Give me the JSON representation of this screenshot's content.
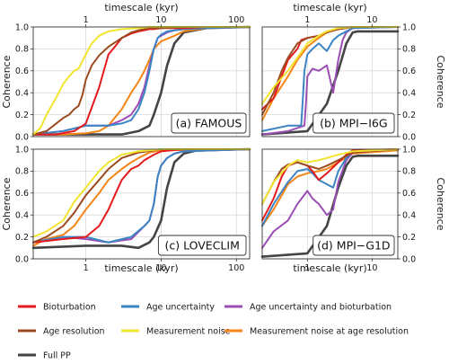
{
  "chart_data": [
    {
      "type": "line",
      "panel_label": "(a) FAMOUS",
      "xscale": "log",
      "xlim": [
        0.2,
        150
      ],
      "ylim": [
        0,
        1.0
      ],
      "x_ticks_top": [
        "1",
        "10",
        "100"
      ],
      "xlabel_top": "timescale (kyr)",
      "ylabel": "Coherence",
      "y_ticks": [
        "0.0",
        "0.2",
        "0.4",
        "0.6",
        "0.8",
        "1.0"
      ],
      "series": [
        {
          "name": "Bioturbation",
          "x": [
            0.2,
            0.4,
            0.7,
            1,
            1.5,
            2,
            2.5,
            3,
            4,
            5,
            6,
            7,
            8,
            10,
            15,
            20,
            40,
            150
          ],
          "y": [
            0.02,
            0.02,
            0.05,
            0.12,
            0.45,
            0.75,
            0.83,
            0.9,
            0.94,
            0.96,
            0.97,
            0.98,
            0.98,
            0.99,
            0.99,
            0.99,
            1.0,
            1.0
          ]
        },
        {
          "name": "Age uncertainty",
          "x": [
            0.2,
            0.5,
            1,
            2,
            3,
            4,
            5,
            6,
            7,
            8,
            9,
            10,
            12,
            15,
            20,
            40,
            150
          ],
          "y": [
            0.02,
            0.05,
            0.1,
            0.1,
            0.12,
            0.15,
            0.25,
            0.4,
            0.6,
            0.8,
            0.9,
            0.93,
            0.96,
            0.97,
            0.98,
            0.99,
            1.0
          ]
        },
        {
          "name": "Age uncertainty and bioturbation",
          "x": [
            0.2,
            0.5,
            1,
            2,
            3,
            4,
            5,
            6,
            7,
            8,
            9,
            10,
            12,
            15,
            20,
            40,
            150
          ],
          "y": [
            0.02,
            0.05,
            0.1,
            0.1,
            0.15,
            0.2,
            0.3,
            0.45,
            0.65,
            0.8,
            0.9,
            0.92,
            0.95,
            0.97,
            0.98,
            0.99,
            1.0
          ]
        },
        {
          "name": "Age resolution",
          "x": [
            0.2,
            0.3,
            0.5,
            0.6,
            0.7,
            0.8,
            0.9,
            1,
            1.2,
            1.5,
            2,
            3,
            4,
            5,
            7,
            10,
            20,
            150
          ],
          "y": [
            0.02,
            0.05,
            0.17,
            0.2,
            0.25,
            0.28,
            0.38,
            0.52,
            0.65,
            0.74,
            0.82,
            0.9,
            0.95,
            0.97,
            0.99,
            0.99,
            1.0,
            1.0
          ]
        },
        {
          "name": "Measurement noise",
          "x": [
            0.2,
            0.25,
            0.3,
            0.4,
            0.5,
            0.6,
            0.7,
            0.8,
            1,
            1.2,
            1.5,
            2,
            3,
            5,
            7,
            10,
            20,
            150
          ],
          "y": [
            0.02,
            0.08,
            0.2,
            0.35,
            0.48,
            0.55,
            0.6,
            0.62,
            0.75,
            0.85,
            0.92,
            0.96,
            0.98,
            0.99,
            1.0,
            1.0,
            1.0,
            1.0
          ]
        },
        {
          "name": "Measurement noise at age resolution",
          "x": [
            0.2,
            0.5,
            1,
            1.5,
            2,
            3,
            4,
            5,
            6,
            7,
            8,
            10,
            15,
            20,
            40,
            150
          ],
          "y": [
            0.02,
            0.02,
            0.03,
            0.05,
            0.1,
            0.25,
            0.4,
            0.5,
            0.6,
            0.7,
            0.8,
            0.87,
            0.92,
            0.96,
            0.99,
            1.0
          ]
        },
        {
          "name": "Full PP",
          "x": [
            0.2,
            1,
            3,
            5,
            7,
            8,
            10,
            12,
            15,
            20,
            40,
            150
          ],
          "y": [
            0.02,
            0.02,
            0.02,
            0.05,
            0.1,
            0.2,
            0.4,
            0.65,
            0.85,
            0.95,
            0.99,
            1.0
          ]
        }
      ]
    },
    {
      "type": "line",
      "panel_label": "(b) MPI−I6G",
      "xscale": "log",
      "xlim": [
        0.2,
        25
      ],
      "ylim": [
        0,
        1.0
      ],
      "x_ticks_top": [
        "1",
        "10"
      ],
      "xlabel_top": "timescale (kyr)",
      "ylabel": "Coherence",
      "y_ticks": [
        "0.0",
        "0.2",
        "0.4",
        "0.6",
        "0.8",
        "1.0"
      ],
      "series": [
        {
          "name": "Bioturbation",
          "x": [
            0.2,
            0.3,
            0.4,
            0.5,
            0.7,
            0.8,
            1,
            1.5,
            2,
            3,
            4,
            5,
            25
          ],
          "y": [
            0.25,
            0.35,
            0.55,
            0.7,
            0.8,
            0.88,
            0.9,
            0.92,
            0.96,
            0.98,
            0.99,
            1.0,
            1.0
          ]
        },
        {
          "name": "Age uncertainty",
          "x": [
            0.2,
            0.5,
            0.8,
            0.85,
            0.9,
            1,
            1.2,
            1.5,
            2,
            2.5,
            3,
            4,
            5,
            25
          ],
          "y": [
            0.05,
            0.1,
            0.1,
            0.35,
            0.6,
            0.75,
            0.8,
            0.85,
            0.78,
            0.88,
            0.92,
            0.96,
            0.99,
            1.0
          ]
        },
        {
          "name": "Age uncertainty and bioturbation",
          "x": [
            0.2,
            0.5,
            0.9,
            0.95,
            1,
            1.2,
            1.5,
            2,
            2.5,
            3,
            3.5,
            4,
            5,
            25
          ],
          "y": [
            0.02,
            0.05,
            0.1,
            0.3,
            0.55,
            0.62,
            0.6,
            0.65,
            0.4,
            0.7,
            0.88,
            0.95,
            0.99,
            1.0
          ]
        },
        {
          "name": "Age resolution",
          "x": [
            0.2,
            0.3,
            0.4,
            0.5,
            0.7,
            1,
            1.5,
            2,
            3,
            5,
            25
          ],
          "y": [
            0.2,
            0.4,
            0.6,
            0.72,
            0.85,
            0.9,
            0.92,
            0.95,
            0.98,
            1.0,
            1.0
          ]
        },
        {
          "name": "Measurement noise",
          "x": [
            0.2,
            0.3,
            0.5,
            0.7,
            1,
            1.5,
            2,
            3,
            5,
            25
          ],
          "y": [
            0.3,
            0.45,
            0.6,
            0.72,
            0.85,
            0.92,
            0.96,
            0.99,
            1.0,
            1.0
          ]
        },
        {
          "name": "Measurement noise at age resolution",
          "x": [
            0.2,
            0.3,
            0.5,
            0.7,
            1,
            1.5,
            2,
            3,
            5,
            25
          ],
          "y": [
            0.15,
            0.35,
            0.55,
            0.7,
            0.82,
            0.9,
            0.95,
            0.98,
            1.0,
            1.0
          ]
        },
        {
          "name": "Full PP",
          "x": [
            0.2,
            1,
            2,
            3,
            4,
            5,
            6,
            25
          ],
          "y": [
            0.02,
            0.05,
            0.3,
            0.6,
            0.85,
            0.95,
            0.96,
            0.96
          ]
        }
      ]
    },
    {
      "type": "line",
      "panel_label": "(c) LOVECLIM",
      "xscale": "log",
      "xlim": [
        0.2,
        150
      ],
      "ylim": [
        0,
        1.0
      ],
      "x_ticks_bottom": [
        "1",
        "10",
        "100"
      ],
      "xlabel_bottom": "timescale (kyr)",
      "ylabel": "Coherence",
      "y_ticks": [
        "0.0",
        "0.2",
        "0.4",
        "0.6",
        "0.8",
        "1.0"
      ],
      "series": [
        {
          "name": "Bioturbation",
          "x": [
            0.2,
            0.5,
            1,
            1.5,
            2,
            2.5,
            3,
            4,
            5,
            6,
            8,
            10,
            20,
            150
          ],
          "y": [
            0.15,
            0.18,
            0.2,
            0.3,
            0.45,
            0.6,
            0.72,
            0.82,
            0.85,
            0.9,
            0.95,
            0.98,
            1.0,
            1.0
          ]
        },
        {
          "name": "Age uncertainty",
          "x": [
            0.2,
            0.5,
            1,
            2,
            4,
            6,
            7,
            8,
            9,
            10,
            12,
            15,
            20,
            150
          ],
          "y": [
            0.15,
            0.2,
            0.2,
            0.15,
            0.2,
            0.3,
            0.35,
            0.5,
            0.75,
            0.85,
            0.92,
            0.96,
            0.98,
            1.0
          ]
        },
        {
          "name": "Age uncertainty and bioturbation",
          "x": [
            0.2,
            0.5,
            1,
            2,
            4,
            6,
            7,
            8,
            9,
            10,
            12,
            15,
            20,
            150
          ],
          "y": [
            0.15,
            0.2,
            0.18,
            0.15,
            0.18,
            0.3,
            0.35,
            0.5,
            0.75,
            0.85,
            0.92,
            0.96,
            0.98,
            1.0
          ]
        },
        {
          "name": "Age resolution",
          "x": [
            0.2,
            0.3,
            0.5,
            0.7,
            1,
            1.5,
            2,
            3,
            5,
            10,
            150
          ],
          "y": [
            0.15,
            0.2,
            0.3,
            0.42,
            0.58,
            0.72,
            0.82,
            0.92,
            0.97,
            1.0,
            1.0
          ]
        },
        {
          "name": "Measurement noise",
          "x": [
            0.2,
            0.3,
            0.5,
            0.7,
            1,
            1.5,
            2,
            3,
            5,
            10,
            150
          ],
          "y": [
            0.2,
            0.25,
            0.35,
            0.52,
            0.65,
            0.8,
            0.88,
            0.95,
            0.98,
            1.0,
            1.0
          ]
        },
        {
          "name": "Measurement noise at age resolution",
          "x": [
            0.2,
            0.3,
            0.5,
            0.7,
            1,
            1.5,
            2,
            3,
            4,
            5,
            7,
            10,
            150
          ],
          "y": [
            0.12,
            0.18,
            0.22,
            0.3,
            0.45,
            0.6,
            0.72,
            0.82,
            0.88,
            0.92,
            0.97,
            0.99,
            1.0
          ]
        },
        {
          "name": "Full PP",
          "x": [
            0.2,
            1,
            3,
            5,
            7,
            8,
            10,
            12,
            15,
            20,
            30,
            150
          ],
          "y": [
            0.1,
            0.12,
            0.12,
            0.1,
            0.15,
            0.2,
            0.35,
            0.65,
            0.88,
            0.96,
            0.99,
            1.0
          ]
        }
      ]
    },
    {
      "type": "line",
      "panel_label": "(d) MPI−G1D",
      "xscale": "log",
      "xlim": [
        0.2,
        25
      ],
      "ylim": [
        0,
        1.0
      ],
      "x_ticks_bottom": [
        "1",
        "10"
      ],
      "xlabel_bottom": "timescale (kyr)",
      "ylabel": "Coherence",
      "y_ticks": [
        "0.0",
        "0.2",
        "0.4",
        "0.6",
        "0.8",
        "1.0"
      ],
      "series": [
        {
          "name": "Bioturbation",
          "x": [
            0.2,
            0.3,
            0.4,
            0.5,
            0.7,
            1,
            1.2,
            1.5,
            2,
            3,
            4,
            5,
            25
          ],
          "y": [
            0.35,
            0.55,
            0.75,
            0.85,
            0.88,
            0.85,
            0.8,
            0.72,
            0.78,
            0.88,
            0.95,
            0.99,
            1.0
          ]
        },
        {
          "name": "Age uncertainty",
          "x": [
            0.2,
            0.3,
            0.5,
            0.7,
            1,
            1.2,
            1.5,
            2,
            2.5,
            3,
            4,
            5,
            25
          ],
          "y": [
            0.3,
            0.5,
            0.7,
            0.8,
            0.82,
            0.78,
            0.72,
            0.68,
            0.65,
            0.8,
            0.92,
            0.98,
            1.0
          ]
        },
        {
          "name": "Age uncertainty and bioturbation",
          "x": [
            0.2,
            0.3,
            0.5,
            0.7,
            1,
            1.2,
            1.5,
            2,
            2.5,
            3,
            4,
            5,
            25
          ],
          "y": [
            0.1,
            0.25,
            0.35,
            0.5,
            0.62,
            0.55,
            0.5,
            0.4,
            0.45,
            0.7,
            0.9,
            0.97,
            1.0
          ]
        },
        {
          "name": "Age resolution",
          "x": [
            0.2,
            0.3,
            0.4,
            0.5,
            0.7,
            1,
            1.5,
            2,
            3,
            5,
            25
          ],
          "y": [
            0.5,
            0.7,
            0.82,
            0.86,
            0.88,
            0.85,
            0.82,
            0.85,
            0.9,
            0.97,
            1.0
          ]
        },
        {
          "name": "Measurement noise",
          "x": [
            0.2,
            0.3,
            0.5,
            0.7,
            1,
            1.5,
            2,
            3,
            5,
            25
          ],
          "y": [
            0.5,
            0.7,
            0.85,
            0.9,
            0.88,
            0.9,
            0.92,
            0.95,
            0.98,
            1.0
          ]
        },
        {
          "name": "Measurement noise at age resolution",
          "x": [
            0.2,
            0.3,
            0.5,
            0.7,
            1,
            1.5,
            2,
            3,
            5,
            25
          ],
          "y": [
            0.3,
            0.45,
            0.68,
            0.75,
            0.78,
            0.8,
            0.82,
            0.88,
            0.96,
            0.99
          ]
        },
        {
          "name": "Full PP",
          "x": [
            0.2,
            1,
            2,
            3,
            4,
            5,
            6,
            25
          ],
          "y": [
            0.02,
            0.05,
            0.3,
            0.65,
            0.85,
            0.93,
            0.94,
            0.94
          ]
        }
      ]
    }
  ],
  "legend": [
    {
      "label": "Bioturbation",
      "color": "#e41a1c"
    },
    {
      "label": "Age uncertainty",
      "color": "#3b84c3"
    },
    {
      "label": "Age uncertainty and bioturbation",
      "color": "#9b4fb4"
    },
    {
      "label": "Age resolution",
      "color": "#9c4a1e"
    },
    {
      "label": "Measurement noise",
      "color": "#f2e530"
    },
    {
      "label": "Measurement noise at age resolution",
      "color": "#f58516"
    },
    {
      "label": "Full PP",
      "color": "#444444"
    }
  ]
}
